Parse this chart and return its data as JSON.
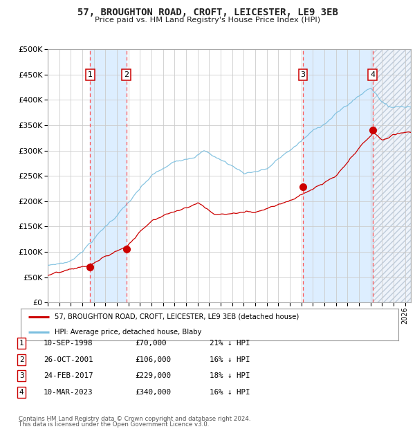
{
  "title": "57, BROUGHTON ROAD, CROFT, LEICESTER, LE9 3EB",
  "subtitle": "Price paid vs. HM Land Registry's House Price Index (HPI)",
  "legend_line1": "57, BROUGHTON ROAD, CROFT, LEICESTER, LE9 3EB (detached house)",
  "legend_line2": "HPI: Average price, detached house, Blaby",
  "footer1": "Contains HM Land Registry data © Crown copyright and database right 2024.",
  "footer2": "This data is licensed under the Open Government Licence v3.0.",
  "xmin": 1995.0,
  "xmax": 2026.5,
  "ymin": 0,
  "ymax": 500000,
  "yticks": [
    0,
    50000,
    100000,
    150000,
    200000,
    250000,
    300000,
    350000,
    400000,
    450000,
    500000
  ],
  "ytick_labels": [
    "£0",
    "£50K",
    "£100K",
    "£150K",
    "£200K",
    "£250K",
    "£300K",
    "£350K",
    "£400K",
    "£450K",
    "£500K"
  ],
  "xtick_years": [
    1995,
    1996,
    1997,
    1998,
    1999,
    2000,
    2001,
    2002,
    2003,
    2004,
    2005,
    2006,
    2007,
    2008,
    2009,
    2010,
    2011,
    2012,
    2013,
    2014,
    2015,
    2016,
    2017,
    2018,
    2019,
    2020,
    2021,
    2022,
    2023,
    2024,
    2025,
    2026
  ],
  "sale_dates": [
    1998.69,
    2001.82,
    2017.15,
    2023.19
  ],
  "sale_prices": [
    70000,
    106000,
    229000,
    340000
  ],
  "sale_labels": [
    "1",
    "2",
    "3",
    "4"
  ],
  "table_rows": [
    {
      "num": "1",
      "date": "10-SEP-1998",
      "price": "£70,000",
      "hpi": "21% ↓ HPI"
    },
    {
      "num": "2",
      "date": "26-OCT-2001",
      "price": "£106,000",
      "hpi": "16% ↓ HPI"
    },
    {
      "num": "3",
      "date": "24-FEB-2017",
      "price": "£229,000",
      "hpi": "18% ↓ HPI"
    },
    {
      "num": "4",
      "date": "10-MAR-2023",
      "price": "£340,000",
      "hpi": "16% ↓ HPI"
    }
  ],
  "hpi_color": "#7bbfdf",
  "sale_line_color": "#cc0000",
  "sale_dot_color": "#cc0000",
  "grid_color": "#cccccc",
  "shade_color": "#ddeeff",
  "vline_color": "#ff5555",
  "bg_color": "#ffffff",
  "hatch_color": "#aabbcc",
  "label_box_color": "#cc0000"
}
